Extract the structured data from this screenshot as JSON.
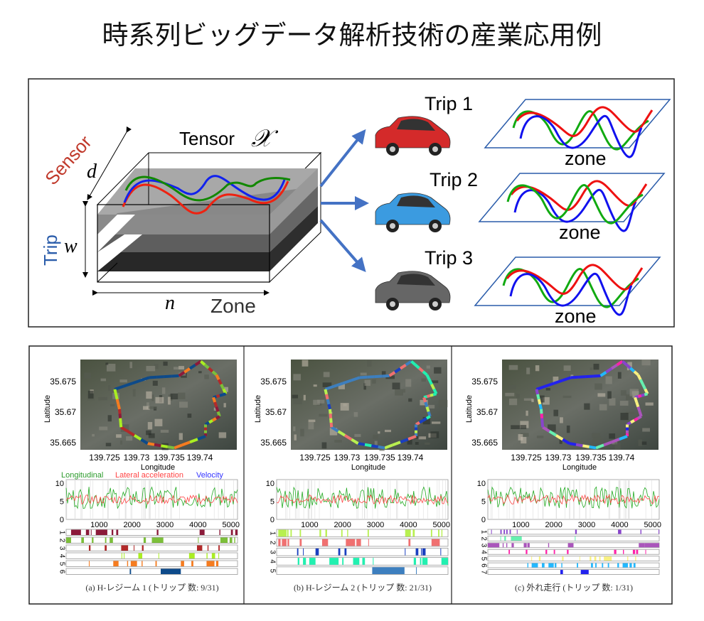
{
  "title": "時系列ビッグデータ解析技術の産業応用例",
  "tensor": {
    "label": "Tensor",
    "symbol": "𝒳",
    "sensor_label": "Sensor",
    "trip_label": "Trip",
    "zone_label": "Zone",
    "d": "d",
    "w": "w",
    "n": "n",
    "colors": {
      "sensor": "#c0392b",
      "trip": "#2a5caa",
      "arrow": "#4472c4"
    }
  },
  "trips": [
    {
      "label": "Trip 1",
      "car_color": "#d42a2a",
      "plane_label": "zone"
    },
    {
      "label": "Trip 2",
      "car_color": "#3b9be0",
      "plane_label": "zone"
    },
    {
      "label": "Trip 3",
      "car_color": "#666666",
      "plane_label": "zone"
    }
  ],
  "panels": [
    {
      "caption": "(a) H-レジーム 1 (トリップ 数: 9/31)",
      "lat_label": "Latitude",
      "lat_ticks": [
        "35.675",
        "35.67",
        "35.665"
      ],
      "lon_label": "Longitude",
      "lon_ticks": [
        "139.725",
        "139.73",
        "139.735",
        "139.74"
      ],
      "legend": {
        "longitudinal": "Longitudinal",
        "lateral": "Lateral acceleration",
        "velocity": "Velocity"
      },
      "y_ticks": [
        "10",
        "5",
        "0"
      ],
      "x_ticks": [
        "1000",
        "2000",
        "3000",
        "4000",
        "5000"
      ],
      "regimes": [
        {
          "label": "1",
          "color": "#8b1a3a",
          "segments": [
            [
              150,
              450
            ],
            [
              600,
              700
            ],
            [
              750,
              760
            ],
            [
              900,
              1250
            ],
            [
              1380,
              1430
            ],
            [
              1520,
              1580
            ],
            [
              2750,
              2800
            ],
            [
              4050,
              4200
            ],
            [
              4650,
              4680
            ],
            [
              5000,
              5060
            ],
            [
              5130,
              5200
            ]
          ]
        },
        {
          "label": "2",
          "color": "#7cbf3a",
          "segments": [
            [
              0,
              150
            ],
            [
              460,
              540
            ],
            [
              780,
              830
            ],
            [
              1180,
              1220
            ],
            [
              1320,
              1420
            ],
            [
              2350,
              2420
            ],
            [
              2600,
              2950
            ],
            [
              4000,
              4010
            ],
            [
              4680,
              4900
            ],
            [
              4960,
              5040
            ],
            [
              5100,
              5130
            ]
          ]
        },
        {
          "label": "3",
          "color": "#b22a2a",
          "segments": [
            [
              690,
              740
            ],
            [
              1170,
              1230
            ],
            [
              1670,
              1880
            ],
            [
              2050,
              2070
            ],
            [
              2300,
              2350
            ],
            [
              3970,
              4130
            ],
            [
              4290,
              4320
            ],
            [
              4620,
              4660
            ]
          ]
        },
        {
          "label": "4",
          "color": "#aaee22",
          "segments": [
            [
              1680,
              1690
            ],
            [
              1750,
              1770
            ],
            [
              2190,
              2310
            ],
            [
              2800,
              2820
            ],
            [
              3730,
              3900
            ],
            [
              4260,
              4290
            ],
            [
              4420,
              4520
            ],
            [
              4620,
              4640
            ]
          ]
        },
        {
          "label": "5",
          "color": "#f57c20",
          "segments": [
            [
              690,
              700
            ],
            [
              1430,
              1590
            ],
            [
              1850,
              1880
            ],
            [
              1960,
              2150
            ],
            [
              2290,
              2320
            ],
            [
              2710,
              2750
            ],
            [
              3480,
              3580
            ],
            [
              3800,
              3860
            ],
            [
              4260,
              4500
            ],
            [
              4550,
              4620
            ]
          ]
        },
        {
          "label": "6",
          "color": "#0d4a8a",
          "segments": [
            [
              1930,
              1970
            ],
            [
              2870,
              3480
            ]
          ]
        }
      ]
    },
    {
      "caption": "(b) H-レジーム 2 (トリップ 数: 21/31)",
      "lat_label": "Latitude",
      "lat_ticks": [
        "35.675",
        "35.67",
        "35.665"
      ],
      "lon_label": "Longitude",
      "lon_ticks": [
        "139.725",
        "139.73",
        "139.735",
        "139.74"
      ],
      "y_ticks": [
        "10",
        "5",
        "0"
      ],
      "x_ticks": [
        "1000",
        "2000",
        "3000",
        "4000",
        "5000"
      ],
      "regimes": [
        {
          "label": "1",
          "color": "#b8f050",
          "segments": [
            [
              50,
              300
            ],
            [
              320,
              360
            ],
            [
              420,
              460
            ],
            [
              700,
              740
            ],
            [
              1300,
              1350
            ],
            [
              1480,
              1530
            ],
            [
              1960,
              2000
            ],
            [
              2140,
              2170
            ],
            [
              2760,
              2800
            ],
            [
              3900,
              4070
            ],
            [
              4130,
              4190
            ],
            [
              4680,
              4720
            ],
            [
              4900,
              4940
            ],
            [
              5000,
              5030
            ]
          ]
        },
        {
          "label": "2",
          "color": "#f07070",
          "segments": [
            [
              50,
              120
            ],
            [
              160,
              300
            ],
            [
              330,
              380
            ],
            [
              700,
              760
            ],
            [
              1380,
              1560
            ],
            [
              2100,
              2380
            ],
            [
              2420,
              2560
            ],
            [
              2780,
              2790
            ],
            [
              4000,
              4060
            ],
            [
              4700,
              4950
            ]
          ]
        },
        {
          "label": "3",
          "color": "#1a3fc0",
          "segments": [
            [
              620,
              660
            ],
            [
              800,
              820
            ],
            [
              1180,
              1280
            ],
            [
              1870,
              1930
            ],
            [
              2060,
              2120
            ],
            [
              3890,
              3900
            ],
            [
              4220,
              4300
            ],
            [
              4380,
              4400
            ],
            [
              4420,
              4520
            ],
            [
              4970,
              4990
            ]
          ]
        },
        {
          "label": "4",
          "color": "#22f0b0",
          "segments": [
            [
              640,
              690
            ],
            [
              800,
              890
            ],
            [
              990,
              1180
            ],
            [
              1600,
              1880
            ],
            [
              1990,
              2030
            ],
            [
              2320,
              2510
            ],
            [
              2600,
              2680
            ],
            [
              2920,
              2930
            ],
            [
              4160,
              4230
            ],
            [
              4350,
              4390
            ],
            [
              4420,
              4580
            ],
            [
              5000,
              5200
            ]
          ]
        },
        {
          "label": "5",
          "color": "#3d7fbf",
          "segments": [
            [
              2900,
              3880
            ],
            [
              4230,
              4250
            ]
          ]
        }
      ]
    },
    {
      "caption": "(c) 外れ走行 (トリップ 数: 1/31)",
      "lat_label": "Latitude",
      "lat_ticks": [
        "35.675",
        "35.67",
        "35.665"
      ],
      "lon_label": "Longitude",
      "lon_ticks": [
        "139.725",
        "139.73",
        "139.735",
        "139.74"
      ],
      "y_ticks": [
        "10",
        "5",
        "0"
      ],
      "x_ticks": [
        "1000",
        "2000",
        "3000",
        "4000",
        "5000"
      ],
      "regimes": [
        {
          "label": "1",
          "color": "#8844cc",
          "segments": [
            [
              100,
              120
            ],
            [
              380,
              420
            ],
            [
              480,
              520
            ],
            [
              560,
              600
            ],
            [
              660,
              700
            ],
            [
              880,
              900
            ],
            [
              2650,
              2700
            ],
            [
              3950,
              4050
            ],
            [
              4630,
              4660
            ],
            [
              5180,
              5200
            ]
          ]
        },
        {
          "label": "2",
          "color": "#66f0b0",
          "segments": [
            [
              380,
              400
            ],
            [
              500,
              550
            ],
            [
              700,
              1030
            ],
            [
              2640,
              2660
            ]
          ]
        },
        {
          "label": "3",
          "color": "#aa55bb",
          "segments": [
            [
              0,
              350
            ],
            [
              450,
              480
            ],
            [
              560,
              590
            ],
            [
              720,
              790
            ],
            [
              1090,
              1180
            ],
            [
              1200,
              1270
            ],
            [
              1830,
              1860
            ],
            [
              2430,
              2600
            ],
            [
              4580,
              4750
            ],
            [
              4750,
              5200
            ]
          ]
        },
        {
          "label": "4",
          "color": "#ff22aa",
          "segments": [
            [
              630,
              670
            ],
            [
              1150,
              1200
            ],
            [
              1750,
              1800
            ],
            [
              2000,
              2040
            ],
            [
              2400,
              2450
            ],
            [
              3830,
              3900
            ],
            [
              4100,
              4130
            ],
            [
              4400,
              4470
            ],
            [
              4500,
              4560
            ],
            [
              4780,
              4800
            ]
          ]
        },
        {
          "label": "5",
          "color": "#f8f080",
          "segments": [
            [
              1320,
              1340
            ],
            [
              1550,
              1600
            ],
            [
              2250,
              2300
            ],
            [
              2780,
              2800
            ],
            [
              3090,
              3140
            ],
            [
              3230,
              3290
            ],
            [
              3380,
              3420
            ],
            [
              3520,
              3760
            ],
            [
              4230,
              4260
            ],
            [
              4470,
              4500
            ]
          ]
        },
        {
          "label": "6",
          "color": "#22b8ff",
          "segments": [
            [
              1200,
              1230
            ],
            [
              1330,
              1520
            ],
            [
              1640,
              1720
            ],
            [
              1840,
              2000
            ],
            [
              2030,
              2080
            ],
            [
              2230,
              2260
            ],
            [
              2700,
              2740
            ],
            [
              3130,
              3190
            ],
            [
              3260,
              3300
            ],
            [
              3460,
              3500
            ],
            [
              3640,
              3680
            ],
            [
              3930,
              3980
            ],
            [
              4090,
              4250
            ],
            [
              4300,
              4370
            ],
            [
              4420,
              4480
            ]
          ]
        },
        {
          "label": "7",
          "color": "#2222ee",
          "segments": [
            [
              2200,
              2280
            ],
            [
              2820,
              3060
            ]
          ]
        }
      ]
    }
  ]
}
